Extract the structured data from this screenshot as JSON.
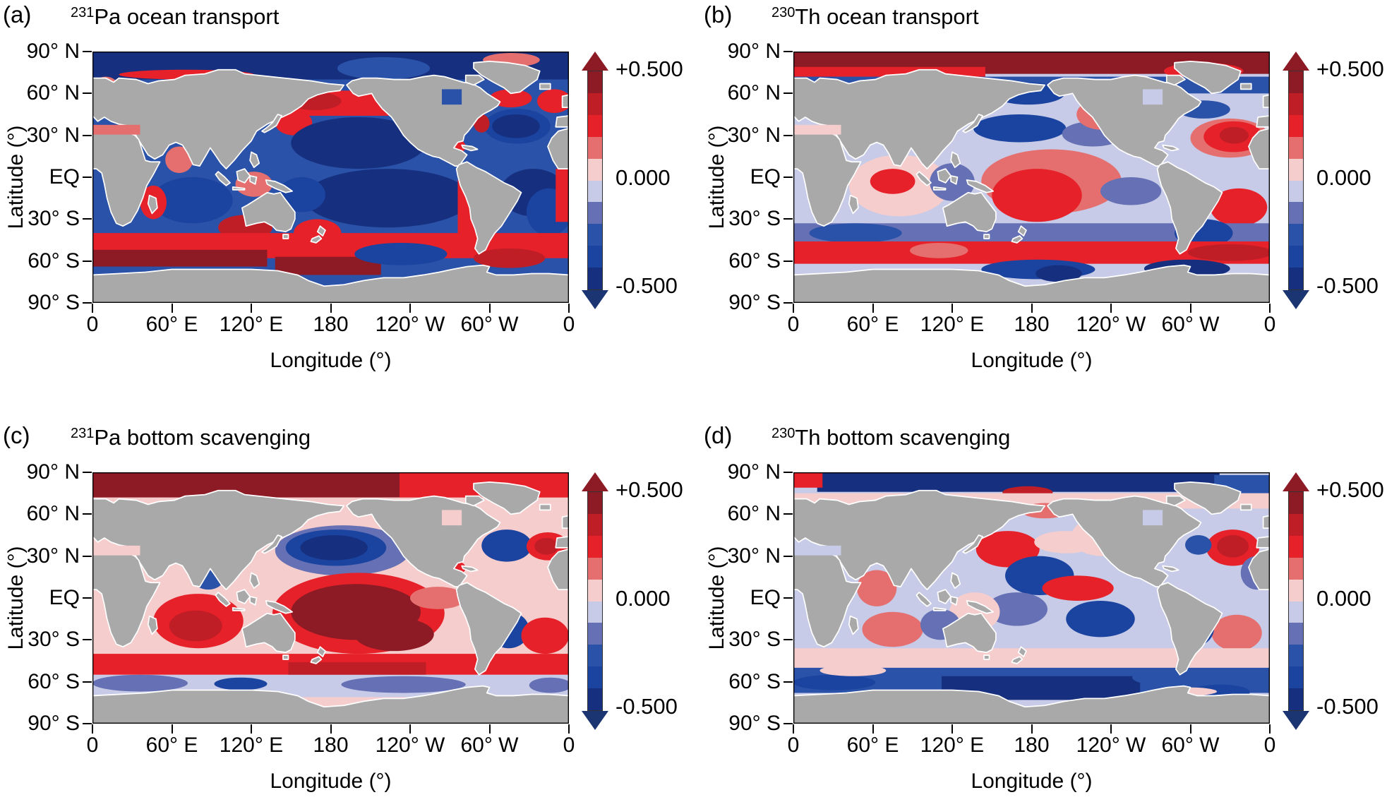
{
  "axes": {
    "lat_label": "Latitude (°)",
    "lon_label": "Longitude (°)",
    "lat_ticks": [
      "90° N",
      "60° N",
      "30° N",
      "EQ",
      "30° S",
      "60° S",
      "90° S"
    ],
    "lon_ticks": [
      "0",
      "60° E",
      "120° E",
      "180",
      "120° W",
      "60° W",
      "0"
    ]
  },
  "colorbar": {
    "tick_labels": [
      "+0.500",
      "0.000",
      "-0.500"
    ],
    "range": [
      -0.5,
      0.5
    ],
    "step": 0.1,
    "palette_top_to_bottom": [
      "#8c1b25",
      "#c01e27",
      "#e62129",
      "#e56f6e",
      "#f6cdcd",
      "#c7cbe7",
      "#6571b4",
      "#2a52a8",
      "#1b43a0",
      "#16307f"
    ],
    "arrow_up_color": "#8c1b25",
    "arrow_down_color": "#1b3572"
  },
  "map_style": {
    "land_color": "#a9a9a9",
    "coast_outline_color": "#ffffff",
    "frame_color": "#000000"
  },
  "panels": [
    {
      "tag": "(a)",
      "isotope": "231",
      "title": "Pa ocean transport"
    },
    {
      "tag": "(b)",
      "isotope": "230",
      "title": "Th ocean transport"
    },
    {
      "tag": "(c)",
      "isotope": "231",
      "title": "Pa bottom scavenging"
    },
    {
      "tag": "(d)",
      "isotope": "230",
      "title": "Th bottom scavenging"
    }
  ],
  "chart_data": [
    {
      "type": "heatmap",
      "panel": "a",
      "title": "²³¹Pa ocean transport",
      "xlabel": "Longitude (°)",
      "ylabel": "Latitude (°)",
      "x_ticks": [
        "0",
        "60° E",
        "120° E",
        "180",
        "120° W",
        "60° W",
        "0"
      ],
      "y_ticks": [
        "90° N",
        "60° N",
        "30° N",
        "EQ",
        "30° S",
        "60° S",
        "90° S"
      ],
      "lon_range_deg_east": [
        0,
        360
      ],
      "lat_range": [
        -90,
        90
      ],
      "colorbar": {
        "tick_labels": [
          "+0.500",
          "0.000",
          "-0.500"
        ],
        "range": [
          -0.5,
          0.5
        ],
        "step": 0.1
      },
      "base_value": -0.25,
      "regions": [
        [
          "r",
          0,
          70,
          360,
          90,
          -0.45
        ],
        [
          "e",
          185,
          70,
          255,
          86,
          -0.25
        ],
        [
          "e",
          295,
          79,
          338,
          89,
          0.15
        ],
        [
          "e",
          20,
          70,
          122,
          77,
          0.25
        ],
        [
          "e",
          0,
          56,
          20,
          72,
          0.15
        ],
        [
          "r",
          0,
          45,
          8,
          62,
          0.25
        ],
        [
          "r",
          135,
          44,
          255,
          62,
          0.25
        ],
        [
          "e",
          148,
          48,
          188,
          61,
          0.35
        ],
        [
          "e",
          138,
          30,
          166,
          48,
          0.25
        ],
        [
          "e",
          150,
          6,
          252,
          43,
          -0.45
        ],
        [
          "e",
          45,
          -33,
          106,
          0,
          -0.35
        ],
        [
          "e",
          160,
          -36,
          286,
          6,
          -0.45
        ],
        [
          "e",
          140,
          -25,
          176,
          0,
          -0.35
        ],
        [
          "e",
          296,
          24,
          346,
          49,
          -0.35
        ],
        [
          "e",
          302,
          28,
          338,
          45,
          -0.45
        ],
        [
          "e",
          288,
          32,
          300,
          45,
          0.35
        ],
        [
          "e",
          300,
          50,
          332,
          63,
          0.25
        ],
        [
          "e",
          336,
          46,
          362,
          63,
          0.25
        ],
        [
          "e",
          262,
          16,
          282,
          28,
          0.25
        ],
        [
          "e",
          308,
          -28,
          358,
          6,
          -0.45
        ],
        [
          "e",
          328,
          -42,
          362,
          -8,
          -0.35
        ],
        [
          "e",
          55,
          3,
          76,
          22,
          0.15
        ],
        [
          "e",
          36,
          -30,
          56,
          -6,
          0.25
        ],
        [
          "e",
          108,
          -14,
          136,
          4,
          0.15
        ],
        [
          "r",
          276,
          -42,
          290,
          -2,
          0.25
        ],
        [
          "r",
          350,
          -32,
          360,
          6,
          0.25
        ],
        [
          "e",
          95,
          -45,
          136,
          -27,
          0.35
        ],
        [
          "e",
          152,
          -50,
          188,
          -30,
          0.25
        ],
        [
          "r",
          0,
          -58,
          360,
          -40,
          0.25
        ],
        [
          "r",
          0,
          -64,
          132,
          -52,
          0.45
        ],
        [
          "r",
          138,
          -70,
          218,
          -57,
          0.45
        ],
        [
          "e",
          288,
          -65,
          342,
          -51,
          0.35
        ],
        [
          "e",
          198,
          -63,
          268,
          -47,
          -0.35
        ]
      ],
      "inland_seas": [
        [
          "r",
          264,
          52,
          279,
          63,
          -0.25
        ],
        [
          "r",
          0,
          30.5,
          36,
          37.5,
          0.15
        ]
      ]
    },
    {
      "type": "heatmap",
      "panel": "b",
      "title": "²³⁰Th ocean transport",
      "xlabel": "Longitude (°)",
      "ylabel": "Latitude (°)",
      "x_ticks": [
        "0",
        "60° E",
        "120° E",
        "180",
        "120° W",
        "60° W",
        "0"
      ],
      "y_ticks": [
        "90° N",
        "60° N",
        "30° N",
        "EQ",
        "30° S",
        "60° S",
        "90° S"
      ],
      "lon_range_deg_east": [
        0,
        360
      ],
      "lat_range": [
        -90,
        90
      ],
      "colorbar": {
        "tick_labels": [
          "+0.500",
          "0.000",
          "-0.500"
        ],
        "range": [
          -0.5,
          0.5
        ],
        "step": 0.1
      },
      "base_value": -0.05,
      "regions": [
        [
          "r",
          0,
          74,
          360,
          90,
          0.45
        ],
        [
          "r",
          0,
          68,
          145,
          79,
          0.25
        ],
        [
          "e",
          280,
          70,
          340,
          82,
          0.25
        ],
        [
          "r",
          0,
          60,
          360,
          72,
          -0.25
        ],
        [
          "e",
          150,
          52,
          205,
          68,
          -0.35
        ],
        [
          "e",
          136,
          25,
          206,
          45,
          -0.35
        ],
        [
          "e",
          203,
          22,
          250,
          40,
          -0.15
        ],
        [
          "e",
          168,
          2,
          238,
          16,
          -0.15
        ],
        [
          "e",
          300,
          14,
          360,
          42,
          0.15
        ],
        [
          "e",
          310,
          18,
          355,
          40,
          0.25
        ],
        [
          "e",
          322,
          24,
          344,
          36,
          0.35
        ],
        [
          "e",
          290,
          42,
          330,
          55,
          -0.25
        ],
        [
          "e",
          142,
          -26,
          248,
          20,
          0.15
        ],
        [
          "e",
          150,
          -32,
          218,
          6,
          0.25
        ],
        [
          "e",
          42,
          -28,
          118,
          16,
          0.05
        ],
        [
          "e",
          58,
          -12,
          92,
          6,
          0.25
        ],
        [
          "e",
          103,
          -17,
          137,
          10,
          -0.15
        ],
        [
          "e",
          232,
          -20,
          278,
          0,
          -0.15
        ],
        [
          "e",
          315,
          -35,
          358,
          -8,
          0.25
        ],
        [
          "r",
          0,
          -48,
          360,
          -33,
          -0.15
        ],
        [
          "e",
          12,
          -47,
          82,
          -33,
          -0.25
        ],
        [
          "e",
          288,
          -50,
          332,
          -30,
          -0.35
        ],
        [
          "r",
          0,
          -62,
          360,
          -46,
          0.25
        ],
        [
          "e",
          298,
          -60,
          362,
          -48,
          0.35
        ],
        [
          "e",
          88,
          -58,
          132,
          -47,
          0.15
        ],
        [
          "e",
          142,
          -73,
          228,
          -59,
          -0.35
        ],
        [
          "e",
          183,
          -75,
          218,
          -63,
          -0.45
        ],
        [
          "e",
          265,
          -72,
          330,
          -59,
          -0.45
        ],
        [
          "e",
          214,
          34,
          252,
          56,
          0.15
        ]
      ],
      "inland_seas": [
        [
          "r",
          264,
          52,
          279,
          63,
          -0.05
        ],
        [
          "r",
          0,
          30.5,
          36,
          37.5,
          0.05
        ]
      ]
    },
    {
      "type": "heatmap",
      "panel": "c",
      "title": "²³¹Pa bottom scavenging",
      "xlabel": "Longitude (°)",
      "ylabel": "Latitude (°)",
      "x_ticks": [
        "0",
        "60° E",
        "120° E",
        "180",
        "120° W",
        "60° W",
        "0"
      ],
      "y_ticks": [
        "90° N",
        "60° N",
        "30° N",
        "EQ",
        "30° S",
        "60° S",
        "90° S"
      ],
      "lon_range_deg_east": [
        0,
        360
      ],
      "lat_range": [
        -90,
        90
      ],
      "colorbar": {
        "tick_labels": [
          "+0.500",
          "0.000",
          "-0.500"
        ],
        "range": [
          -0.5,
          0.5
        ],
        "step": 0.1
      },
      "base_value": 0.05,
      "regions": [
        [
          "r",
          0,
          72,
          360,
          90,
          0.45
        ],
        [
          "r",
          232,
          72,
          360,
          90,
          0.25
        ],
        [
          "e",
          138,
          16,
          240,
          52,
          -0.15
        ],
        [
          "e",
          146,
          23,
          222,
          49,
          -0.35
        ],
        [
          "e",
          157,
          27,
          208,
          45,
          -0.45
        ],
        [
          "e",
          294,
          26,
          332,
          49,
          -0.35
        ],
        [
          "e",
          328,
          27,
          360,
          47,
          0.25
        ],
        [
          "e",
          334,
          31,
          352,
          43,
          0.35
        ],
        [
          "e",
          136,
          -40,
          266,
          18,
          0.25
        ],
        [
          "e",
          150,
          -30,
          248,
          10,
          0.45
        ],
        [
          "e",
          198,
          -38,
          258,
          -14,
          0.45
        ],
        [
          "e",
          240,
          -8,
          282,
          8,
          0.15
        ],
        [
          "e",
          46,
          -36,
          114,
          3,
          0.25
        ],
        [
          "e",
          58,
          -31,
          98,
          -9,
          0.35
        ],
        [
          "e",
          76,
          6,
          99,
          21,
          -0.25
        ],
        [
          "e",
          299,
          -36,
          330,
          -10,
          -0.35
        ],
        [
          "e",
          324,
          -40,
          360,
          -14,
          0.25
        ],
        [
          "e",
          262,
          16,
          282,
          27,
          0.25
        ],
        [
          "r",
          0,
          -55,
          360,
          -40,
          0.25
        ],
        [
          "r",
          148,
          -60,
          252,
          -46,
          0.35
        ],
        [
          "r",
          0,
          -71,
          360,
          -55,
          -0.05
        ],
        [
          "e",
          0,
          -67,
          72,
          -55,
          -0.15
        ],
        [
          "e",
          188,
          -68,
          282,
          -56,
          -0.15
        ],
        [
          "e",
          92,
          -66,
          132,
          -57,
          -0.35
        ],
        [
          "e",
          330,
          -68,
          362,
          -57,
          -0.15
        ]
      ],
      "inland_seas": [
        [
          "r",
          264,
          52,
          279,
          63,
          0.05
        ],
        [
          "r",
          0,
          30.5,
          36,
          37.5,
          0.05
        ]
      ]
    },
    {
      "type": "heatmap",
      "panel": "d",
      "title": "²³⁰Th bottom scavenging",
      "xlabel": "Longitude (°)",
      "ylabel": "Latitude (°)",
      "x_ticks": [
        "0",
        "60° E",
        "120° E",
        "180",
        "120° W",
        "60° W",
        "0"
      ],
      "y_ticks": [
        "90° N",
        "60° N",
        "30° N",
        "EQ",
        "30° S",
        "60° S",
        "90° S"
      ],
      "lon_range_deg_east": [
        0,
        360
      ],
      "lat_range": [
        -90,
        90
      ],
      "colorbar": {
        "tick_labels": [
          "+0.500",
          "0.000",
          "-0.500"
        ],
        "range": [
          -0.5,
          0.5
        ],
        "step": 0.1
      },
      "base_value": -0.05,
      "regions": [
        [
          "r",
          18,
          76,
          322,
          90,
          -0.45
        ],
        [
          "r",
          0,
          79,
          22,
          90,
          0.25
        ],
        [
          "e",
          158,
          71,
          196,
          80,
          0.35
        ],
        [
          "r",
          318,
          75,
          360,
          88,
          -0.25
        ],
        [
          "r",
          0,
          64,
          360,
          75,
          0.05
        ],
        [
          "e",
          172,
          57,
          208,
          68,
          0.15
        ],
        [
          "e",
          210,
          30,
          256,
          58,
          0.05
        ],
        [
          "e",
          138,
          22,
          186,
          48,
          0.25
        ],
        [
          "e",
          182,
          32,
          230,
          48,
          0.05
        ],
        [
          "e",
          160,
          2,
          212,
          30,
          -0.35
        ],
        [
          "e",
          188,
          -2,
          242,
          16,
          0.25
        ],
        [
          "e",
          206,
          -28,
          258,
          -2,
          -0.35
        ],
        [
          "e",
          146,
          -20,
          192,
          4,
          -0.15
        ],
        [
          "e",
          118,
          -24,
          156,
          4,
          0.05
        ],
        [
          "e",
          312,
          23,
          352,
          49,
          0.25
        ],
        [
          "e",
          320,
          29,
          344,
          45,
          0.35
        ],
        [
          "e",
          296,
          31,
          316,
          45,
          -0.25
        ],
        [
          "e",
          338,
          6,
          362,
          30,
          -0.15
        ],
        [
          "e",
          48,
          -6,
          78,
          20,
          0.15
        ],
        [
          "e",
          52,
          -35,
          98,
          -10,
          0.15
        ],
        [
          "e",
          96,
          -30,
          126,
          -8,
          -0.15
        ],
        [
          "e",
          316,
          -38,
          354,
          -12,
          0.15
        ],
        [
          "e",
          292,
          -34,
          318,
          -8,
          -0.35
        ],
        [
          "r",
          0,
          -50,
          360,
          -36,
          0.05
        ],
        [
          "r",
          0,
          -68,
          360,
          -50,
          -0.25
        ],
        [
          "r",
          112,
          -73,
          262,
          -56,
          -0.45
        ],
        [
          "e",
          0,
          -66,
          62,
          -55,
          -0.35
        ],
        [
          "e",
          256,
          -64,
          334,
          -50,
          -0.25
        ],
        [
          "e",
          300,
          -73,
          345,
          -62,
          -0.35
        ],
        [
          "e",
          20,
          -56,
          70,
          -48,
          0.05
        ],
        [
          "e",
          275,
          -70,
          320,
          -64,
          0.05
        ]
      ],
      "inland_seas": [
        [
          "r",
          264,
          52,
          279,
          63,
          -0.05
        ],
        [
          "r",
          0,
          30.5,
          36,
          37.5,
          -0.05
        ]
      ]
    }
  ]
}
